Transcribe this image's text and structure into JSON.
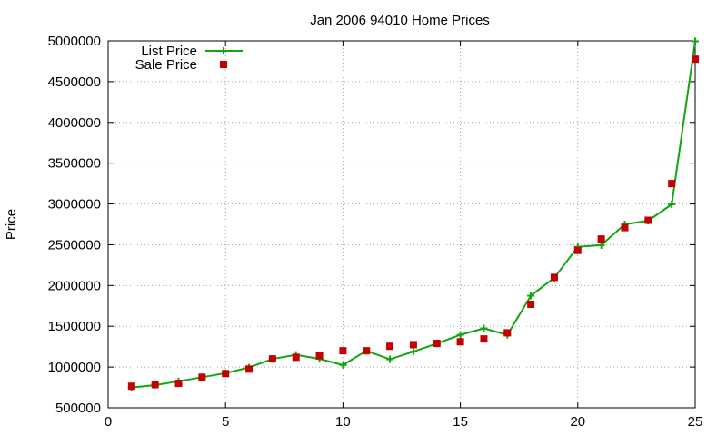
{
  "colors": {
    "list_line": "#11a611",
    "sale_marker": "#c40000",
    "grid": "#a0a0a0",
    "axis": "#000000"
  },
  "chart_data": {
    "type": "line",
    "title": "Jan 2006 94010 Home Prices",
    "xlabel": "",
    "ylabel": "Price",
    "xlim": [
      0,
      25
    ],
    "ylim": [
      500000,
      5000000
    ],
    "xticks": [
      "0",
      "5",
      "10",
      "15",
      "20",
      "25"
    ],
    "yticks": [
      "500000",
      "1000000",
      "1500000",
      "2000000",
      "2500000",
      "3000000",
      "3500000",
      "4000000",
      "4500000",
      "5000000"
    ],
    "grid": true,
    "legend_position": "top-left",
    "series": [
      {
        "name": "List Price",
        "style": "line-with-plus-markers",
        "x": [
          1,
          2,
          3,
          4,
          5,
          6,
          7,
          8,
          9,
          10,
          11,
          12,
          13,
          14,
          15,
          16,
          17,
          18,
          19,
          20,
          21,
          22,
          23,
          24,
          25
        ],
        "values": [
          749000,
          779000,
          825000,
          875000,
          925000,
          995000,
          1099000,
          1150000,
          1100000,
          1025000,
          1199000,
          1095000,
          1189000,
          1289000,
          1395000,
          1475000,
          1395000,
          1875000,
          2095000,
          2475000,
          2495000,
          2750000,
          2795000,
          2995000,
          4995000
        ]
      },
      {
        "name": "Sale Price",
        "style": "square-markers",
        "x": [
          1,
          2,
          3,
          4,
          5,
          6,
          7,
          8,
          9,
          10,
          11,
          12,
          13,
          14,
          15,
          16,
          17,
          18,
          19,
          20,
          21,
          22,
          23,
          24,
          25
        ],
        "values": [
          765000,
          785000,
          800000,
          875000,
          920000,
          975000,
          1100000,
          1120000,
          1140000,
          1200000,
          1200000,
          1255000,
          1275000,
          1290000,
          1310000,
          1345000,
          1420000,
          1770000,
          2100000,
          2430000,
          2570000,
          2710000,
          2800000,
          3250000,
          4775000
        ]
      }
    ]
  }
}
